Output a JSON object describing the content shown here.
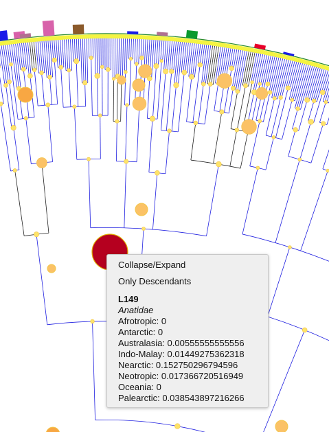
{
  "popup": {
    "menu": {
      "collapse_expand": "Collapse/Expand",
      "only_descendants": "Only Descendants"
    },
    "node": {
      "id": "L149",
      "taxon": "Anatidae",
      "regions": [
        {
          "name": "Afrotropic",
          "value": "0"
        },
        {
          "name": "Antarctic",
          "value": "0"
        },
        {
          "name": "Australasia",
          "value": "0.00555555555556"
        },
        {
          "name": "Indo-Malay",
          "value": "0.01449275362318"
        },
        {
          "name": "Nearctic",
          "value": "0.152750296794596"
        },
        {
          "name": "Neotropic",
          "value": "0.017366720516949"
        },
        {
          "name": "Oceania",
          "value": "0"
        },
        {
          "name": "Palearctic",
          "value": "0.038543897216266"
        }
      ]
    }
  },
  "colors": {
    "branch": "#1f1fe0",
    "branch_dark": "#222222",
    "node_fill": "#fde36a",
    "node_stroke": "#f3c64a",
    "node_large": "#fbc266",
    "node_orange": "#f8a743",
    "selected_node": "#b5001f",
    "ring": "#f4f442",
    "bars": [
      "#1a1ae8",
      "#d862aa",
      "#8b5a2b",
      "#0a9a2e",
      "#e8002a",
      "#b07090"
    ]
  }
}
